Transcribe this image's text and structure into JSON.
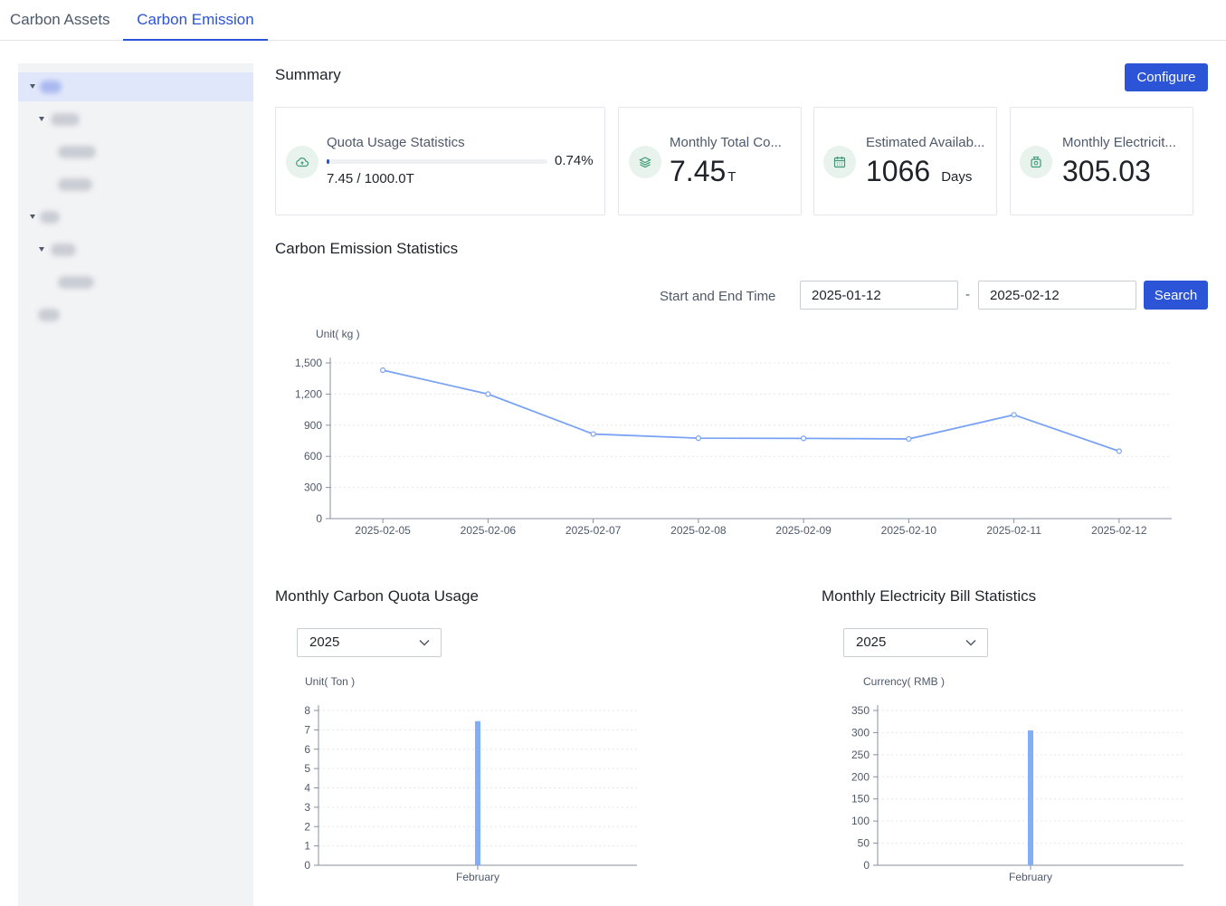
{
  "tabs": [
    {
      "label": "Carbon Assets",
      "active": false
    },
    {
      "label": "Carbon Emission",
      "active": true
    }
  ],
  "summary": {
    "title": "Summary",
    "configure_label": "Configure",
    "cards": {
      "quota": {
        "label": "Quota Usage Statistics",
        "percent": "0.74%",
        "fraction": 0.0074,
        "value_text": "7.45 / 1000.0T",
        "icon": "cloud-icon"
      },
      "monthly_total": {
        "label": "Monthly Total Co...",
        "value": "7.45",
        "unit": "T",
        "icon": "layers-icon"
      },
      "estimated": {
        "label": "Estimated Availab...",
        "value": "1066",
        "unit": "Days",
        "icon": "calendar-icon"
      },
      "electricity": {
        "label": "Monthly Electricit...",
        "value": "305.03",
        "icon": "money-bag-icon"
      }
    }
  },
  "emission_stats": {
    "title": "Carbon Emission Statistics",
    "range_label": "Start and End Time",
    "start_date": "2025-01-12",
    "separator": "-",
    "end_date": "2025-02-12",
    "search_label": "Search"
  },
  "quota_usage": {
    "title": "Monthly Carbon Quota Usage",
    "year": "2025"
  },
  "electricity_bill": {
    "title": "Monthly Electricity Bill Statistics",
    "year": "2025"
  },
  "chart_data": [
    {
      "type": "line",
      "unit_label": "Unit( kg )",
      "x": [
        "2025-02-05",
        "2025-02-06",
        "2025-02-07",
        "2025-02-08",
        "2025-02-09",
        "2025-02-10",
        "2025-02-11",
        "2025-02-12"
      ],
      "values": [
        1430,
        1200,
        815,
        775,
        773,
        768,
        1000,
        650
      ],
      "yticks": [
        0,
        300,
        600,
        900,
        1200,
        1500
      ],
      "ylim": [
        0,
        1500
      ],
      "color": "#7aa3f5",
      "grid": true
    },
    {
      "type": "bar",
      "unit_label": "Unit( Ton )",
      "categories": [
        "February"
      ],
      "values": [
        7.45
      ],
      "yticks": [
        0,
        1,
        2,
        3,
        4,
        5,
        6,
        7,
        8
      ],
      "ylim": [
        0,
        8
      ],
      "color": "#82aef7",
      "grid": true
    },
    {
      "type": "bar",
      "unit_label": "Currency( RMB )",
      "categories": [
        "February"
      ],
      "values": [
        305.03
      ],
      "yticks": [
        0,
        50,
        100,
        150,
        200,
        250,
        300,
        350
      ],
      "ylim": [
        0,
        350
      ],
      "color": "#82aef7",
      "grid": true
    }
  ]
}
